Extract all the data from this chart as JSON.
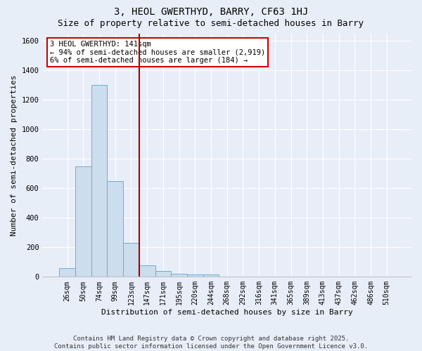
{
  "title": "3, HEOL GWERTHYD, BARRY, CF63 1HJ",
  "subtitle": "Size of property relative to semi-detached houses in Barry",
  "xlabel": "Distribution of semi-detached houses by size in Barry",
  "ylabel": "Number of semi-detached properties",
  "bar_color": "#ccdded",
  "bar_edge_color": "#6aaed6",
  "background_color": "#e8eef8",
  "grid_color": "#ffffff",
  "categories": [
    "26sqm",
    "50sqm",
    "74sqm",
    "99sqm",
    "123sqm",
    "147sqm",
    "171sqm",
    "195sqm",
    "220sqm",
    "244sqm",
    "268sqm",
    "292sqm",
    "316sqm",
    "341sqm",
    "365sqm",
    "389sqm",
    "413sqm",
    "437sqm",
    "462sqm",
    "486sqm",
    "510sqm"
  ],
  "values": [
    60,
    750,
    1300,
    650,
    230,
    80,
    40,
    20,
    15,
    15,
    0,
    0,
    0,
    0,
    0,
    0,
    0,
    0,
    0,
    0,
    0
  ],
  "vline_index": 5,
  "vline_color": "#aa0000",
  "annotation_text": "3 HEOL GWERTHYD: 141sqm\n← 94% of semi-detached houses are smaller (2,919)\n6% of semi-detached houses are larger (184) →",
  "annotation_box_color": "#cc0000",
  "ylim_max": 1650,
  "footnote": "Contains HM Land Registry data © Crown copyright and database right 2025.\nContains public sector information licensed under the Open Government Licence v3.0.",
  "title_fontsize": 10,
  "subtitle_fontsize": 9,
  "tick_fontsize": 7,
  "ylabel_fontsize": 8,
  "xlabel_fontsize": 8,
  "annotation_fontsize": 7.5,
  "footnote_fontsize": 6.5
}
